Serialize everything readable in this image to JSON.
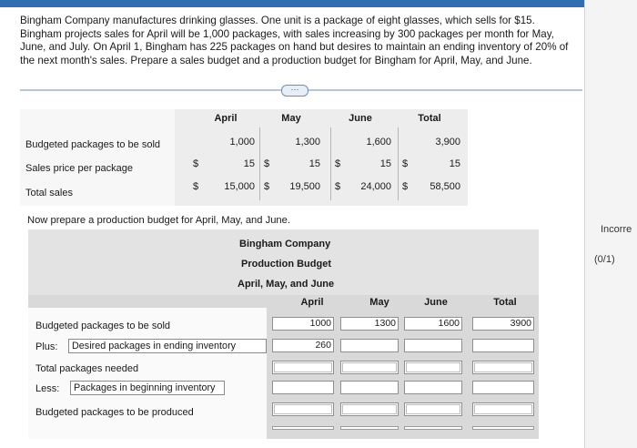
{
  "problem": {
    "line1": "Bingham Company manufactures drinking glasses. One unit is a package of eight glasses, which sells for $15.",
    "line2": "Bingham projects sales for April will be 1,000 packages, with sales increasing by 300 packages per month for May,",
    "line3": "June, and July. On April 1, Bingham has 225 packages on hand but desires to maintain an ending inventory of 20% of",
    "line4": "the next month's sales. Prepare a sales budget and a production budget for Bingham for April, May, and June."
  },
  "expander_label": "⋯",
  "sales_budget": {
    "headers": [
      "April",
      "May",
      "June",
      "Total"
    ],
    "rows": [
      {
        "label": "Budgeted packages to be sold",
        "dollar": false,
        "values": [
          "1,000",
          "1,300",
          "1,600",
          "3,900"
        ]
      },
      {
        "label": "Sales price per package",
        "dollar": true,
        "values": [
          "15",
          "15",
          "15",
          "15"
        ]
      },
      {
        "label": "Total sales",
        "dollar": true,
        "values": [
          "15,000",
          "19,500",
          "24,000",
          "58,500"
        ]
      }
    ],
    "dollar_sign": "$"
  },
  "prompt2": "Now prepare a production budget for April, May, and June.",
  "production_budget": {
    "company": "Bingham Company",
    "title": "Production Budget",
    "period": "April, May, and June",
    "headers": [
      "April",
      "May",
      "June",
      "Total"
    ],
    "row1_label": "Budgeted packages to be sold",
    "plus_label": "Plus:",
    "plus_select": "Desired packages in ending inventory",
    "total_needed_label": "Total packages needed",
    "less_label": "Less:",
    "less_select": "Packages in beginning inventory",
    "produced_label": "Budgeted packages to be produced",
    "row1_values": [
      "1000",
      "1300",
      "1600",
      "3900"
    ],
    "row2_values": [
      "260",
      "",
      "",
      ""
    ]
  },
  "side": {
    "status": "Incorre",
    "score": "(0/1)"
  }
}
